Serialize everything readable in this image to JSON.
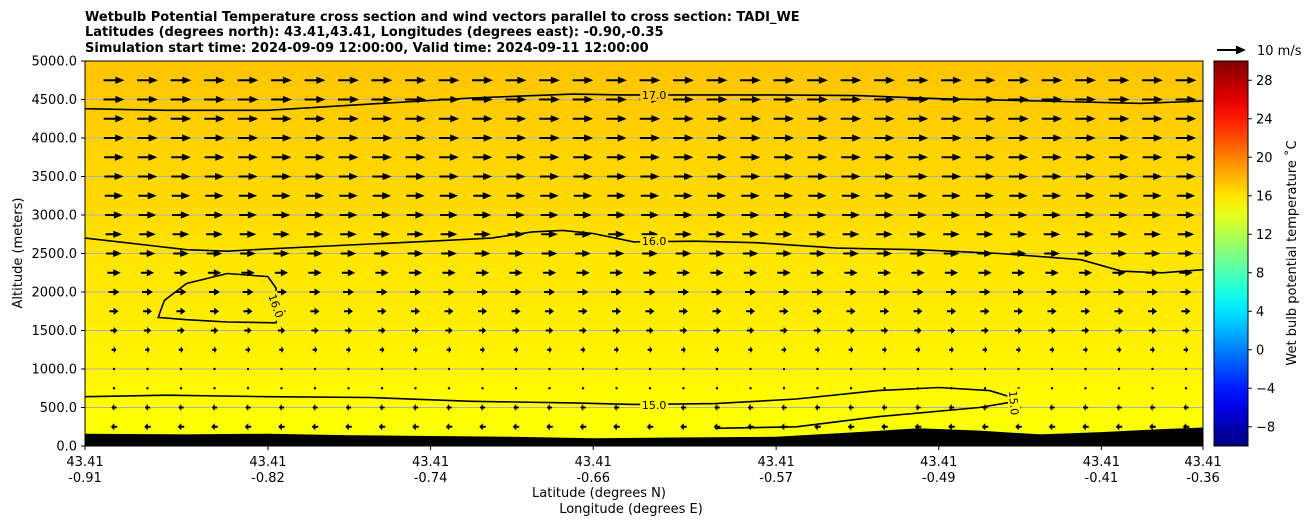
{
  "chart_data": {
    "type": "heatmap",
    "title_lines": [
      "Wetbulb Potential Temperature cross section and wind vectors parallel to cross section: TADI_WE",
      "Latitudes (degrees north): 43.41,43.41, Longitudes (degrees east): -0.90,-0.35",
      "Simulation start time: 2024-09-09 12:00:00, Valid time: 2024-09-11 12:00:00"
    ],
    "ylabel": "Altitude (meters)",
    "xlabel_lines": [
      "Latitude (degrees N)",
      "Longitude (degrees E)"
    ],
    "ylim": [
      0,
      5000
    ],
    "y_ticks": [
      "0.0",
      "500.0",
      "1000.0",
      "1500.0",
      "2000.0",
      "2500.0",
      "3000.0",
      "3500.0",
      "4000.0",
      "4500.0",
      "5000.0"
    ],
    "x_ticks_lat": [
      "43.41",
      "43.41",
      "43.41",
      "43.41",
      "43.41",
      "43.41",
      "43.41",
      "43.41"
    ],
    "x_ticks_lon": [
      "-0.91",
      "-0.82",
      "-0.74",
      "-0.66",
      "-0.57",
      "-0.49",
      "-0.41",
      "-0.36"
    ],
    "x_tick_values": [
      -0.91,
      -0.82,
      -0.74,
      -0.66,
      -0.57,
      -0.49,
      -0.41,
      -0.36
    ],
    "xlim": [
      -0.91,
      -0.36
    ],
    "grid": "horizontal",
    "colorbar": {
      "label": "Wet bulb potential temperature $^\\circ$C",
      "label_display": "Wet bulb potential temperature ˚C",
      "range": [
        -10,
        30
      ],
      "ticks": [
        "−8",
        "−4",
        "0",
        "4",
        "8",
        "12",
        "16",
        "20",
        "24",
        "28"
      ],
      "tick_values": [
        -8,
        -4,
        0,
        4,
        8,
        12,
        16,
        20,
        24,
        28
      ],
      "colormap": "jet"
    },
    "vector_key": {
      "label": "10 m/s",
      "speed": 10
    },
    "contours": [
      {
        "level": 17.0,
        "label": "17.0",
        "points": [
          [
            -0.91,
            4380
          ],
          [
            -0.87,
            4360
          ],
          [
            -0.82,
            4360
          ],
          [
            -0.77,
            4440
          ],
          [
            -0.72,
            4520
          ],
          [
            -0.67,
            4570
          ],
          [
            -0.645,
            4560
          ],
          [
            -0.61,
            4560
          ],
          [
            -0.57,
            4560
          ],
          [
            -0.53,
            4550
          ],
          [
            -0.49,
            4510
          ],
          [
            -0.44,
            4480
          ],
          [
            -0.39,
            4450
          ],
          [
            -0.36,
            4480
          ]
        ]
      },
      {
        "level": 16.0,
        "label": "16.0",
        "points": [
          [
            -0.91,
            2700
          ],
          [
            -0.88,
            2610
          ],
          [
            -0.86,
            2550
          ],
          [
            -0.84,
            2530
          ],
          [
            -0.82,
            2560
          ],
          [
            -0.78,
            2610
          ],
          [
            -0.74,
            2660
          ],
          [
            -0.71,
            2700
          ],
          [
            -0.69,
            2780
          ],
          [
            -0.675,
            2800
          ],
          [
            -0.66,
            2760
          ],
          [
            -0.64,
            2650
          ],
          [
            -0.61,
            2660
          ],
          [
            -0.58,
            2640
          ],
          [
            -0.54,
            2570
          ],
          [
            -0.5,
            2550
          ],
          [
            -0.46,
            2500
          ],
          [
            -0.42,
            2420
          ],
          [
            -0.4,
            2270
          ],
          [
            -0.38,
            2250
          ],
          [
            -0.36,
            2290
          ]
        ]
      },
      {
        "level": 16.0,
        "label": "16.0",
        "closed": true,
        "points": [
          [
            -0.816,
            1700
          ],
          [
            -0.816,
            1600
          ],
          [
            -0.84,
            1610
          ],
          [
            -0.86,
            1640
          ],
          [
            -0.874,
            1670
          ],
          [
            -0.871,
            1890
          ],
          [
            -0.86,
            2110
          ],
          [
            -0.84,
            2240
          ],
          [
            -0.82,
            2200
          ],
          [
            -0.816,
            2050
          ]
        ]
      },
      {
        "level": 15.0,
        "label": "15.0",
        "points": [
          [
            -0.91,
            640
          ],
          [
            -0.87,
            660
          ],
          [
            -0.82,
            640
          ],
          [
            -0.77,
            630
          ],
          [
            -0.72,
            580
          ],
          [
            -0.67,
            560
          ],
          [
            -0.64,
            540
          ],
          [
            -0.6,
            550
          ],
          [
            -0.56,
            610
          ],
          [
            -0.52,
            720
          ],
          [
            -0.49,
            760
          ],
          [
            -0.465,
            720
          ],
          [
            -0.455,
            640
          ],
          [
            -0.452,
            580
          ],
          [
            -0.47,
            500
          ],
          [
            -0.52,
            380
          ],
          [
            -0.56,
            250
          ],
          [
            -0.6,
            230
          ]
        ]
      }
    ],
    "terrain_m": [
      [
        -0.91,
        160
      ],
      [
        -0.86,
        150
      ],
      [
        -0.82,
        160
      ],
      [
        -0.78,
        140
      ],
      [
        -0.74,
        130
      ],
      [
        -0.7,
        120
      ],
      [
        -0.66,
        100
      ],
      [
        -0.62,
        110
      ],
      [
        -0.57,
        120
      ],
      [
        -0.53,
        180
      ],
      [
        -0.5,
        230
      ],
      [
        -0.47,
        200
      ],
      [
        -0.44,
        150
      ],
      [
        -0.41,
        180
      ],
      [
        -0.38,
        220
      ],
      [
        -0.36,
        240
      ]
    ],
    "theta_profile": [
      [
        0,
        14.6
      ],
      [
        300,
        14.9
      ],
      [
        700,
        15.2
      ],
      [
        1000,
        15.4
      ],
      [
        1500,
        15.6
      ],
      [
        2000,
        15.9
      ],
      [
        2500,
        16.0
      ],
      [
        3000,
        16.4
      ],
      [
        3500,
        16.6
      ],
      [
        4000,
        16.8
      ],
      [
        4500,
        17.1
      ],
      [
        5000,
        17.3
      ]
    ],
    "wind_profile_ms": [
      [
        0,
        -2
      ],
      [
        300,
        -2.6
      ],
      [
        500,
        -2
      ],
      [
        700,
        -0.8
      ],
      [
        850,
        0
      ],
      [
        1000,
        0.6
      ],
      [
        1200,
        1.6
      ],
      [
        1500,
        2.8
      ],
      [
        2000,
        4.2
      ],
      [
        2500,
        6
      ],
      [
        3000,
        6.8
      ],
      [
        3500,
        7.4
      ],
      [
        4000,
        7.8
      ],
      [
        4500,
        8
      ],
      [
        5000,
        8
      ]
    ]
  }
}
